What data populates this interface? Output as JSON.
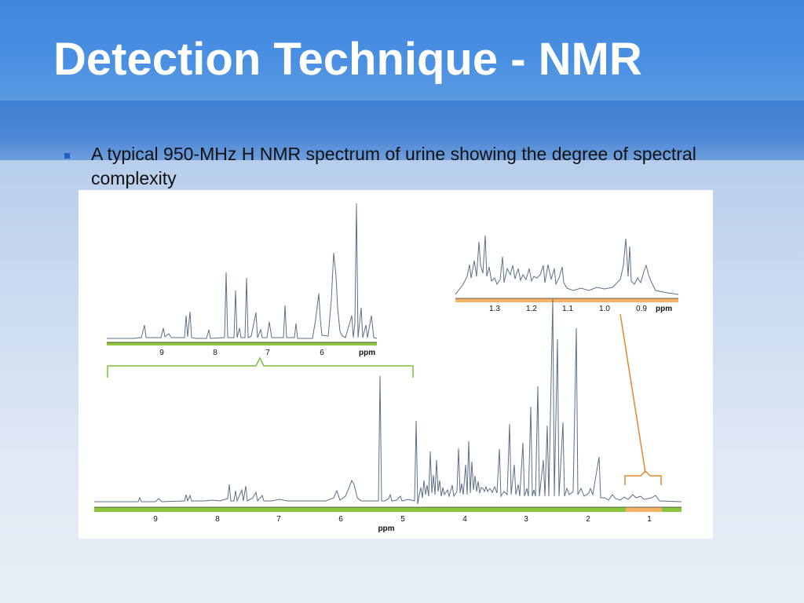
{
  "slide": {
    "title": "Detection Technique - NMR",
    "bullet": "A typical 950-MHz H NMR spectrum of urine showing the degree of spectral complexity"
  },
  "colors": {
    "title_band": "#4a90e2",
    "spectrum_line": "#5b6f86",
    "green_axis": "#8cc63f",
    "orange_axis": "#f7b267",
    "bracket_green": "#7cbf3a",
    "bracket_orange": "#e08a2c"
  },
  "figure": {
    "main_axis": {
      "ticks": [
        "9",
        "8",
        "7",
        "6",
        "5",
        "4",
        "3",
        "2",
        "1"
      ],
      "label": "ppm"
    },
    "left_inset_axis": {
      "ticks": [
        "9",
        "8",
        "7",
        "6"
      ],
      "label": "ppm"
    },
    "right_inset_axis": {
      "ticks": [
        "1.3",
        "1.2",
        "1.1",
        "1.0",
        "0.9"
      ],
      "label": "ppm"
    }
  }
}
